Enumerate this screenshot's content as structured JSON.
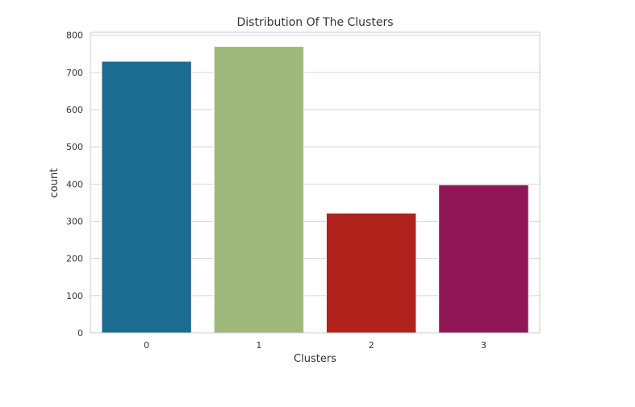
{
  "chart_data": {
    "type": "bar",
    "title": "Distribution Of The Clusters",
    "xlabel": "Clusters",
    "ylabel": "count",
    "categories": [
      "0",
      "1",
      "2",
      "3"
    ],
    "values": [
      730,
      770,
      322,
      398
    ],
    "colors": [
      "#1c6b91",
      "#9fb97c",
      "#b0221b",
      "#8f1756"
    ],
    "ylim": [
      0,
      808
    ],
    "yticks": [
      0,
      100,
      200,
      300,
      400,
      500,
      600,
      700,
      800
    ],
    "grid": true,
    "legend": "none"
  }
}
